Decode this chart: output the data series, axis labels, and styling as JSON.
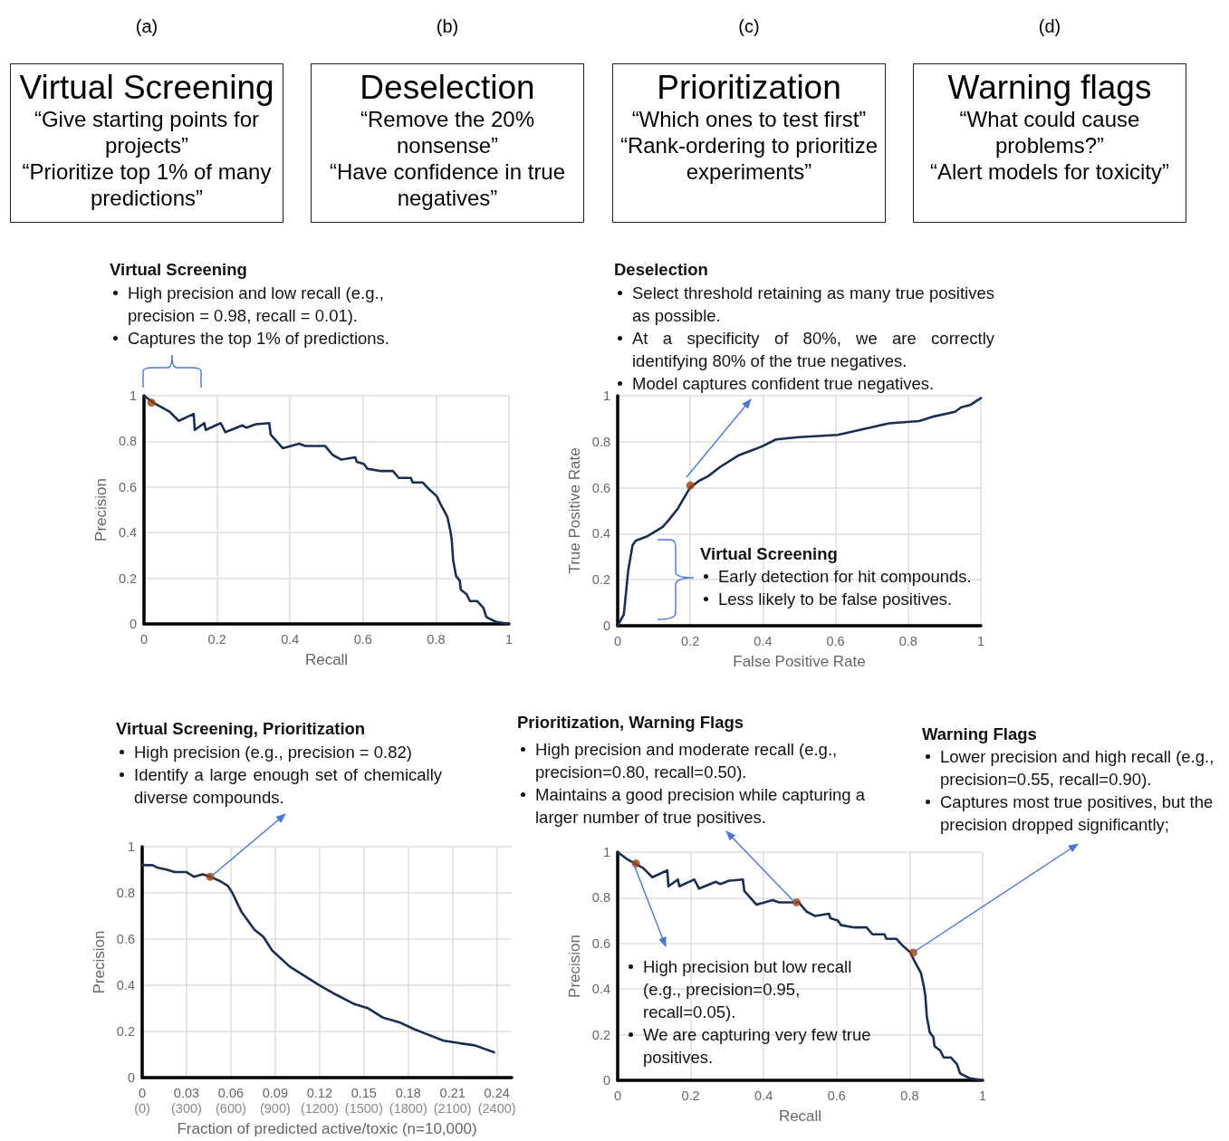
{
  "chart_data": [
    {
      "type": "other",
      "subtitle": "(a)",
      "title": "Virtual Screening",
      "annotations": [
        "“Give starting points for projects”",
        "“Prioritize top 1% of many predictions”"
      ]
    },
    {
      "type": "other",
      "subtitle": "(b)",
      "title": "Deselection",
      "annotations": [
        "“Remove the 20% nonsense”",
        "“Have confidence in true negatives”"
      ]
    },
    {
      "type": "other",
      "subtitle": "(c)",
      "title": "Prioritization",
      "annotations": [
        "“Which ones to test first”",
        "“Rank-ordering to prioritize experiments”"
      ]
    },
    {
      "type": "other",
      "subtitle": "(d)",
      "title": "Warning flags",
      "annotations": [
        "“What could cause problems?”",
        "“Alert models for toxicity”"
      ]
    },
    {
      "type": "line",
      "title": "Virtual Screening",
      "annotations": [
        "High precision and low recall (e.g., precision = 0.98, recall = 0.01).",
        "Captures the top 1% of predictions."
      ],
      "xlabel": "Recall",
      "ylabel": "Precision",
      "xlim": [
        0,
        1
      ],
      "ylim": [
        0,
        1
      ],
      "xticks": [
        0,
        0.2,
        0.4,
        0.6,
        0.8,
        1
      ],
      "yticks": [
        0,
        0.2,
        0.4,
        0.6,
        0.8,
        1
      ],
      "grid": true,
      "marker": "none",
      "series": [
        {
          "type": "line",
          "color": "#1c2e4f",
          "x": [
            0,
            0.025,
            0.07,
            0.095,
            0.136,
            0.139,
            0.165,
            0.169,
            0.21,
            0.223,
            0.269,
            0.281,
            0.306,
            0.343,
            0.347,
            0.38,
            0.425,
            0.442,
            0.496,
            0.517,
            0.541,
            0.579,
            0.583,
            0.603,
            0.612,
            0.649,
            0.682,
            0.698,
            0.731,
            0.736,
            0.764,
            0.781,
            0.802,
            0.814,
            0.831,
            0.839,
            0.843,
            0.847,
            0.855,
            0.865,
            0.868,
            0.884,
            0.893,
            0.913,
            0.93,
            0.938,
            0.963,
            1
          ],
          "values": [
            1,
            0.97,
            0.93,
            0.89,
            0.92,
            0.85,
            0.88,
            0.85,
            0.88,
            0.84,
            0.87,
            0.86,
            0.875,
            0.88,
            0.83,
            0.77,
            0.79,
            0.78,
            0.78,
            0.74,
            0.72,
            0.73,
            0.71,
            0.7,
            0.68,
            0.67,
            0.67,
            0.64,
            0.64,
            0.62,
            0.62,
            0.59,
            0.56,
            0.52,
            0.47,
            0.41,
            0.37,
            0.28,
            0.21,
            0.19,
            0.15,
            0.13,
            0.1,
            0.1,
            0.07,
            0.03,
            0.01,
            0
          ]
        },
        {
          "type": "scatter",
          "color": "#a0410d",
          "marker": "circle",
          "x": [
            0.02
          ],
          "values": [
            0.97
          ]
        }
      ]
    },
    {
      "type": "line",
      "title": "Deselection",
      "annotations": [
        "Select threshold retaining as many true positives as possible.",
        "At a specificity of 80%, we are correctly identifying 80% of the true negatives.",
        "Model captures confident true negatives.",
        "Virtual Screening",
        "Early detection for hit compounds.",
        "Less likely to be false positives."
      ],
      "xlabel": "False Positive Rate",
      "ylabel": "True Positive Rate",
      "xlim": [
        0,
        1
      ],
      "ylim": [
        0,
        1
      ],
      "xticks": [
        0,
        0.2,
        0.4,
        0.6,
        0.8,
        1
      ],
      "yticks": [
        0,
        0.2,
        0.4,
        0.6,
        0.8,
        1
      ],
      "grid": true,
      "marker": "none",
      "series": [
        {
          "type": "line",
          "color": "#1c2e4f",
          "x": [
            0,
            0.017,
            0.029,
            0.041,
            0.05,
            0.083,
            0.124,
            0.141,
            0.166,
            0.199,
            0.224,
            0.249,
            0.282,
            0.332,
            0.365,
            0.398,
            0.436,
            0.498,
            0.606,
            0.664,
            0.747,
            0.83,
            0.871,
            0.929,
            0.946,
            0.971,
            1
          ],
          "values": [
            0,
            0.05,
            0.24,
            0.35,
            0.37,
            0.39,
            0.43,
            0.46,
            0.51,
            0.6,
            0.63,
            0.65,
            0.69,
            0.74,
            0.76,
            0.78,
            0.81,
            0.82,
            0.83,
            0.85,
            0.88,
            0.89,
            0.91,
            0.93,
            0.95,
            0.96,
            0.99
          ]
        },
        {
          "type": "scatter",
          "color": "#a0410d",
          "marker": "circle",
          "x": [
            0.2
          ],
          "values": [
            0.61
          ]
        }
      ]
    },
    {
      "type": "line",
      "title": "Virtual Screening, Prioritization",
      "annotations": [
        "High precision (e.g., precision = 0.82)",
        "Identify a large enough set of chemically diverse compounds."
      ],
      "xlabel": "Fraction of predicted active/toxic (n=10,000)",
      "ylabel": "Precision",
      "xlim": [
        0,
        0.25
      ],
      "ylim": [
        0,
        1
      ],
      "xticks": [
        0,
        0.03,
        0.06,
        0.09,
        0.12,
        0.15,
        0.18,
        0.21,
        0.24
      ],
      "x2lim": [
        0,
        2500
      ],
      "x2ticks": [
        {
          "value": 0,
          "label": "(0)"
        },
        {
          "value": 300,
          "label": "(300)"
        },
        {
          "value": 600,
          "label": "(600)"
        },
        {
          "value": 900,
          "label": "(900)"
        },
        {
          "value": 1200,
          "label": "(1200)"
        },
        {
          "value": 1500,
          "label": "(1500)"
        },
        {
          "value": 1800,
          "label": "(1800)"
        },
        {
          "value": 2100,
          "label": "(2100)"
        },
        {
          "value": 2400,
          "label": "(2400)"
        }
      ],
      "yticks": [
        0,
        0.2,
        0.4,
        0.6,
        0.8,
        1
      ],
      "grid": true,
      "marker": "none",
      "series": [
        {
          "type": "line",
          "color": "#1c2e4f",
          "x": [
            0,
            0.007,
            0.01,
            0.017,
            0.022,
            0.03,
            0.035,
            0.041,
            0.046,
            0.053,
            0.058,
            0.061,
            0.067,
            0.076,
            0.082,
            0.088,
            0.1,
            0.11,
            0.12,
            0.131,
            0.143,
            0.153,
            0.163,
            0.174,
            0.184,
            0.192,
            0.204,
            0.214,
            0.225,
            0.238
          ],
          "values": [
            0.92,
            0.92,
            0.91,
            0.9,
            0.89,
            0.89,
            0.87,
            0.88,
            0.87,
            0.85,
            0.83,
            0.8,
            0.72,
            0.64,
            0.61,
            0.55,
            0.48,
            0.44,
            0.4,
            0.36,
            0.32,
            0.3,
            0.26,
            0.24,
            0.21,
            0.19,
            0.16,
            0.15,
            0.14,
            0.11
          ]
        },
        {
          "type": "scatter",
          "color": "#a0410d",
          "marker": "circle",
          "x": [
            0.046
          ],
          "values": [
            0.87
          ]
        }
      ]
    },
    {
      "type": "line",
      "title": "Prioritization, Warning Flags",
      "annotations": [
        "High precision and moderate recall (e.g., precision=0.80, recall=0.50).",
        "Maintains a good precision while capturing a larger number of true positives.",
        "Warning Flags",
        "Lower precision and high recall (e.g., precision=0.55, recall=0.90).",
        "Captures most true positives, but the precision dropped significantly;",
        "High precision but low recall (e.g., precision=0.95, recall=0.05).",
        "We are capturing very few true positives."
      ],
      "xlabel": "Recall",
      "ylabel": "Precision",
      "xlim": [
        0,
        1
      ],
      "ylim": [
        0,
        1
      ],
      "xticks": [
        0,
        0.2,
        0.4,
        0.6,
        0.8,
        1
      ],
      "yticks": [
        0,
        0.2,
        0.4,
        0.6,
        0.8,
        1
      ],
      "grid": true,
      "marker": "none",
      "series": [
        {
          "type": "line",
          "color": "#1c2e4f",
          "x": [
            0,
            0.025,
            0.07,
            0.095,
            0.136,
            0.139,
            0.165,
            0.169,
            0.21,
            0.223,
            0.269,
            0.281,
            0.306,
            0.343,
            0.347,
            0.38,
            0.425,
            0.442,
            0.496,
            0.517,
            0.541,
            0.579,
            0.583,
            0.603,
            0.612,
            0.649,
            0.682,
            0.698,
            0.731,
            0.736,
            0.764,
            0.781,
            0.802,
            0.814,
            0.831,
            0.839,
            0.843,
            0.847,
            0.855,
            0.865,
            0.868,
            0.884,
            0.893,
            0.913,
            0.93,
            0.938,
            0.963,
            1
          ],
          "values": [
            1,
            0.97,
            0.93,
            0.89,
            0.92,
            0.85,
            0.88,
            0.85,
            0.88,
            0.84,
            0.87,
            0.86,
            0.875,
            0.88,
            0.83,
            0.77,
            0.79,
            0.78,
            0.78,
            0.74,
            0.72,
            0.73,
            0.71,
            0.7,
            0.68,
            0.67,
            0.67,
            0.64,
            0.64,
            0.62,
            0.62,
            0.59,
            0.56,
            0.52,
            0.47,
            0.41,
            0.37,
            0.28,
            0.21,
            0.19,
            0.15,
            0.13,
            0.1,
            0.1,
            0.07,
            0.03,
            0.01,
            0
          ]
        },
        {
          "type": "scatter",
          "color": "#a0410d",
          "marker": "circle",
          "x": [
            0.05,
            0.49,
            0.81
          ],
          "values": [
            0.95,
            0.78,
            0.56
          ]
        }
      ]
    }
  ]
}
